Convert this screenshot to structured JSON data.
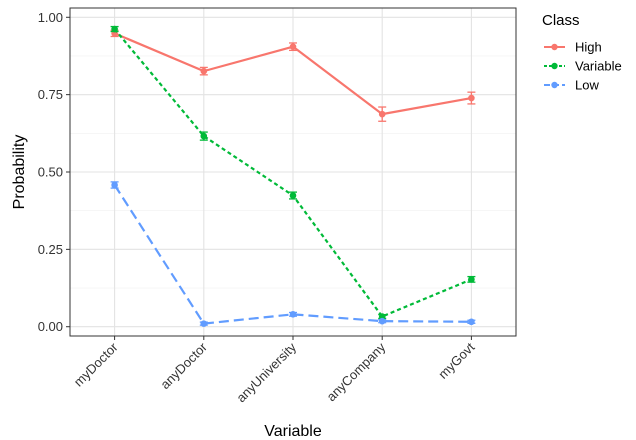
{
  "chart_data": {
    "type": "line",
    "xlabel": "Variable",
    "ylabel": "Probability",
    "categories": [
      "myDoctor",
      "anyDoctor",
      "anyUniversity",
      "anyCompany",
      "myGovt"
    ],
    "ylim": [
      -0.03,
      1.03
    ],
    "yticks": [
      0.0,
      0.25,
      0.5,
      0.75,
      1.0
    ],
    "ytick_labels": [
      "0.00",
      "0.25",
      "0.50",
      "0.75",
      "1.00"
    ],
    "grid": true,
    "legend": {
      "title": "Class",
      "position": "right"
    },
    "series": [
      {
        "name": "High",
        "color": "#F8766D",
        "dash": "solid",
        "values": [
          0.948,
          0.826,
          0.905,
          0.687,
          0.739
        ],
        "err_low": [
          0.938,
          0.814,
          0.893,
          0.664,
          0.72
        ],
        "err_high": [
          0.958,
          0.838,
          0.917,
          0.71,
          0.758
        ]
      },
      {
        "name": "Variable",
        "color": "#00BA38",
        "dash": "dotted",
        "values": [
          0.962,
          0.616,
          0.424,
          0.033,
          0.153
        ],
        "err_low": [
          0.954,
          0.603,
          0.413,
          0.027,
          0.144
        ],
        "err_high": [
          0.97,
          0.629,
          0.435,
          0.039,
          0.162
        ]
      },
      {
        "name": "Low",
        "color": "#619CFF",
        "dash": "dashed",
        "values": [
          0.458,
          0.01,
          0.04,
          0.018,
          0.016
        ],
        "err_low": [
          0.448,
          0.005,
          0.034,
          0.013,
          0.011
        ],
        "err_high": [
          0.468,
          0.015,
          0.046,
          0.023,
          0.021
        ]
      }
    ]
  }
}
